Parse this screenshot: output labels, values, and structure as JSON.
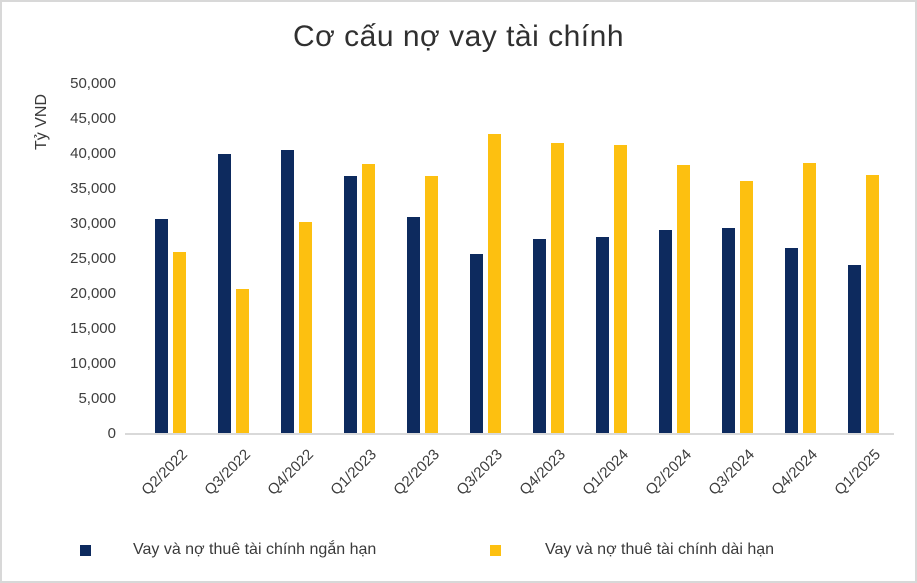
{
  "chart_data": {
    "type": "bar",
    "title": "Cơ cấu nợ vay tài chính",
    "ylabel": "Tỷ VND",
    "xlabel": "",
    "categories": [
      "Q2/2022",
      "Q3/2022",
      "Q4/2022",
      "Q1/2023",
      "Q2/2023",
      "Q3/2023",
      "Q4/2023",
      "Q1/2024",
      "Q2/2024",
      "Q3/2024",
      "Q4/2024",
      "Q1/2025"
    ],
    "series": [
      {
        "name": "Vay và nợ thuê tài chính ngắn hạn",
        "color": "#0d2a5e",
        "values": [
          30700,
          40000,
          40500,
          36900,
          31000,
          25700,
          27900,
          28200,
          29200,
          29400,
          26500,
          24100
        ]
      },
      {
        "name": "Vay và nợ thuê tài chính dài hạn",
        "color": "#fdc010",
        "values": [
          26000,
          20700,
          30300,
          38600,
          36800,
          42800,
          41500,
          41300,
          38400,
          36100,
          38700,
          37000
        ]
      }
    ],
    "ylim": [
      0,
      50000
    ],
    "ytick_step": 5000,
    "ytick_labels": [
      "0",
      "5,000",
      "10,000",
      "15,000",
      "20,000",
      "25,000",
      "30,000",
      "35,000",
      "40,000",
      "45,000",
      "50,000"
    ],
    "grid": false,
    "legend_position": "bottom"
  },
  "colors": {
    "background": "#ffffff",
    "frame_border": "#d8d8d8",
    "axis_line": "#d9d9d9",
    "title_text": "#303030",
    "tick_text": "#3d3d3d",
    "series_short_term": "#0d2a5e",
    "series_long_term": "#fdc010"
  }
}
